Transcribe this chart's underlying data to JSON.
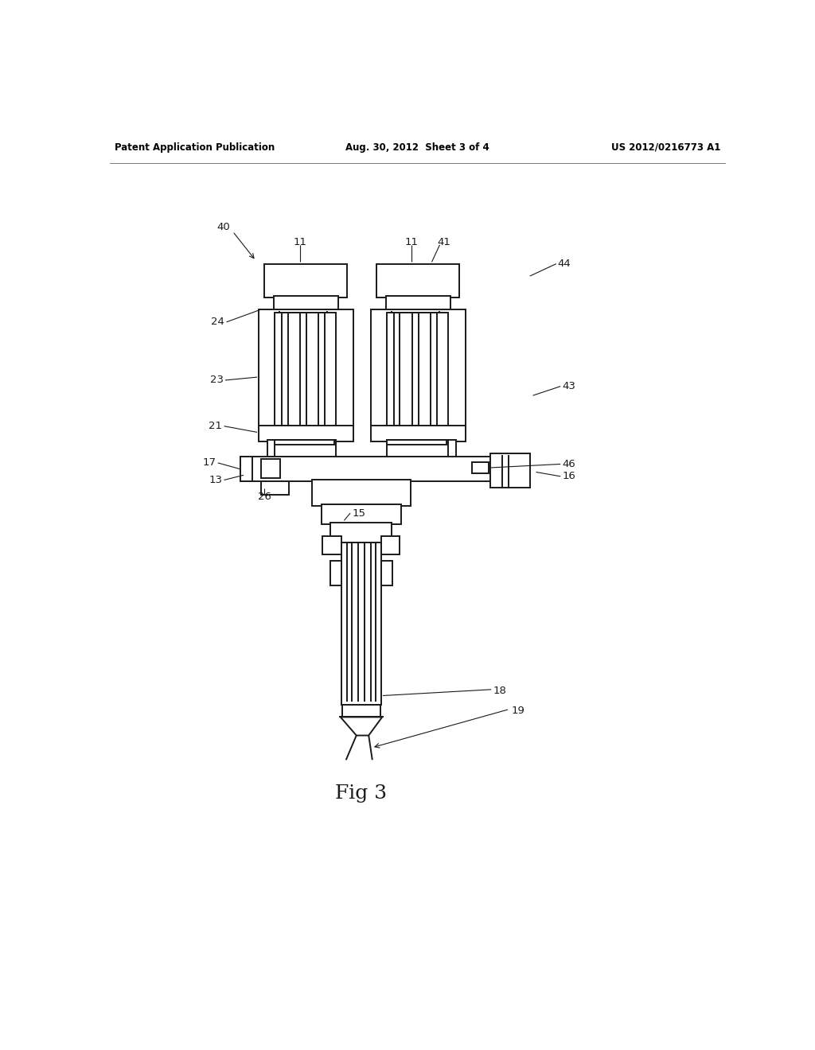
{
  "header_left": "Patent Application Publication",
  "header_middle": "Aug. 30, 2012  Sheet 3 of 4",
  "header_right": "US 2012/0216773 A1",
  "fig_label": "Fig 3",
  "bg_color": "#ffffff",
  "line_color": "#1a1a1a",
  "figsize": [
    10.24,
    13.2
  ],
  "dpi": 100
}
